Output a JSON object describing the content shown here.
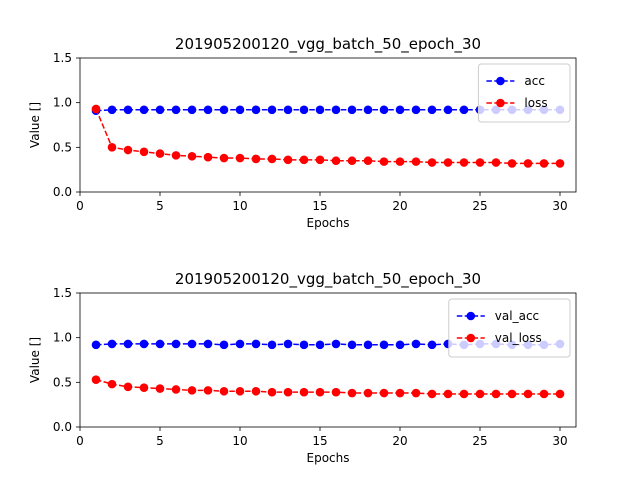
{
  "chart_data": [
    {
      "type": "line",
      "title": "201905200120_vgg_batch_50_epoch_30",
      "xlabel": "Epochs",
      "ylabel": "Value []",
      "xlim": [
        0,
        31
      ],
      "ylim": [
        0,
        1.5
      ],
      "xticks": [
        0,
        5,
        10,
        15,
        20,
        25,
        30
      ],
      "yticks": [
        "0.0",
        "0.5",
        "1.0",
        "1.5"
      ],
      "grid": false,
      "legend_position": "top-right",
      "x": [
        1,
        2,
        3,
        4,
        5,
        6,
        7,
        8,
        9,
        10,
        11,
        12,
        13,
        14,
        15,
        16,
        17,
        18,
        19,
        20,
        21,
        22,
        23,
        24,
        25,
        26,
        27,
        28,
        29,
        30
      ],
      "series": [
        {
          "name": "acc",
          "color": "#0000ff",
          "values": [
            0.91,
            0.92,
            0.92,
            0.92,
            0.92,
            0.92,
            0.92,
            0.92,
            0.92,
            0.92,
            0.92,
            0.92,
            0.92,
            0.92,
            0.92,
            0.92,
            0.92,
            0.92,
            0.92,
            0.92,
            0.92,
            0.92,
            0.92,
            0.92,
            0.92,
            0.92,
            0.92,
            0.92,
            0.92,
            0.92
          ]
        },
        {
          "name": "loss",
          "color": "#ff0000",
          "values": [
            0.93,
            0.5,
            0.47,
            0.45,
            0.43,
            0.41,
            0.4,
            0.39,
            0.38,
            0.38,
            0.37,
            0.37,
            0.36,
            0.36,
            0.36,
            0.35,
            0.35,
            0.35,
            0.34,
            0.34,
            0.34,
            0.33,
            0.33,
            0.33,
            0.33,
            0.33,
            0.32,
            0.32,
            0.32,
            0.32
          ]
        }
      ]
    },
    {
      "type": "line",
      "title": "201905200120_vgg_batch_50_epoch_30",
      "xlabel": "Epochs",
      "ylabel": "Value []",
      "xlim": [
        0,
        31
      ],
      "ylim": [
        0,
        1.5
      ],
      "xticks": [
        0,
        5,
        10,
        15,
        20,
        25,
        30
      ],
      "yticks": [
        "0.0",
        "0.5",
        "1.0",
        "1.5"
      ],
      "grid": false,
      "legend_position": "top-right",
      "x": [
        1,
        2,
        3,
        4,
        5,
        6,
        7,
        8,
        9,
        10,
        11,
        12,
        13,
        14,
        15,
        16,
        17,
        18,
        19,
        20,
        21,
        22,
        23,
        24,
        25,
        26,
        27,
        28,
        29,
        30
      ],
      "series": [
        {
          "name": "val_acc",
          "color": "#0000ff",
          "values": [
            0.92,
            0.93,
            0.93,
            0.93,
            0.93,
            0.93,
            0.93,
            0.93,
            0.92,
            0.93,
            0.93,
            0.92,
            0.93,
            0.92,
            0.92,
            0.93,
            0.92,
            0.92,
            0.92,
            0.92,
            0.93,
            0.92,
            0.93,
            0.92,
            0.93,
            0.93,
            0.92,
            0.92,
            0.92,
            0.93
          ]
        },
        {
          "name": "val_loss",
          "color": "#ff0000",
          "values": [
            0.53,
            0.48,
            0.45,
            0.44,
            0.43,
            0.42,
            0.41,
            0.41,
            0.4,
            0.4,
            0.4,
            0.39,
            0.39,
            0.39,
            0.39,
            0.39,
            0.38,
            0.38,
            0.38,
            0.38,
            0.38,
            0.37,
            0.37,
            0.37,
            0.37,
            0.37,
            0.37,
            0.37,
            0.37,
            0.37
          ]
        }
      ]
    }
  ]
}
